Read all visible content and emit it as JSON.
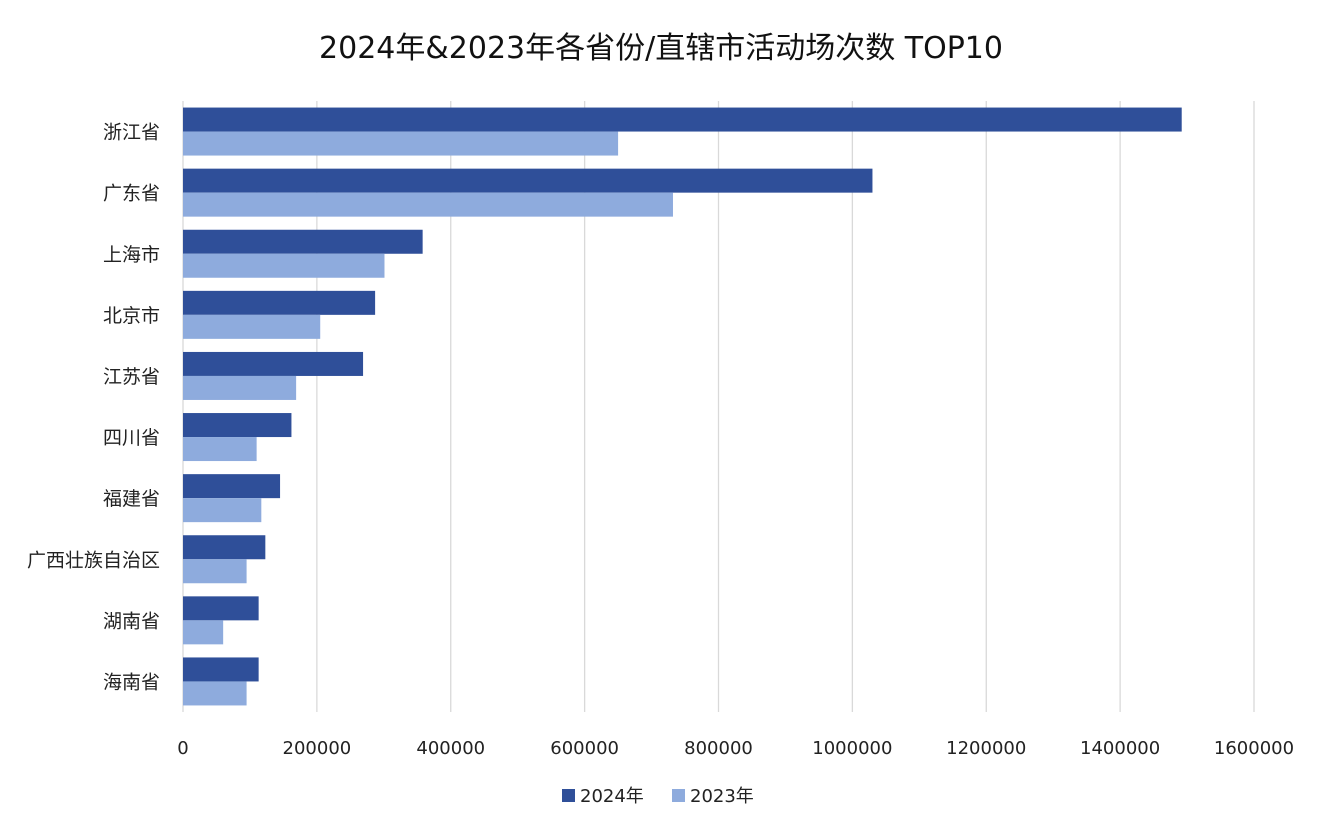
{
  "chart_data": {
    "type": "bar",
    "orientation": "horizontal",
    "title": "2024年&2023年各省份/直辖市活动场次数 TOP10",
    "xlabel": "",
    "ylabel": "",
    "categories": [
      "浙江省",
      "广东省",
      "上海市",
      "北京市",
      "江苏省",
      "四川省",
      "福建省",
      "广西壮族自治区",
      "湖南省",
      "海南省"
    ],
    "series": [
      {
        "name": "2024年",
        "color": "#2F4F99",
        "values": [
          1492000,
          1030000,
          358000,
          287000,
          269000,
          162000,
          145000,
          123000,
          113000,
          113000
        ]
      },
      {
        "name": "2023年",
        "color": "#8EABDD",
        "values": [
          650000,
          732000,
          301000,
          205000,
          169000,
          110000,
          117000,
          95000,
          60000,
          95000
        ]
      }
    ],
    "xlim": [
      0,
      1600000
    ],
    "xticks": [
      "0",
      "200000",
      "400000",
      "600000",
      "800000",
      "1000000",
      "1200000",
      "1400000",
      "1600000"
    ],
    "grid": true,
    "legend_position": "bottom"
  }
}
